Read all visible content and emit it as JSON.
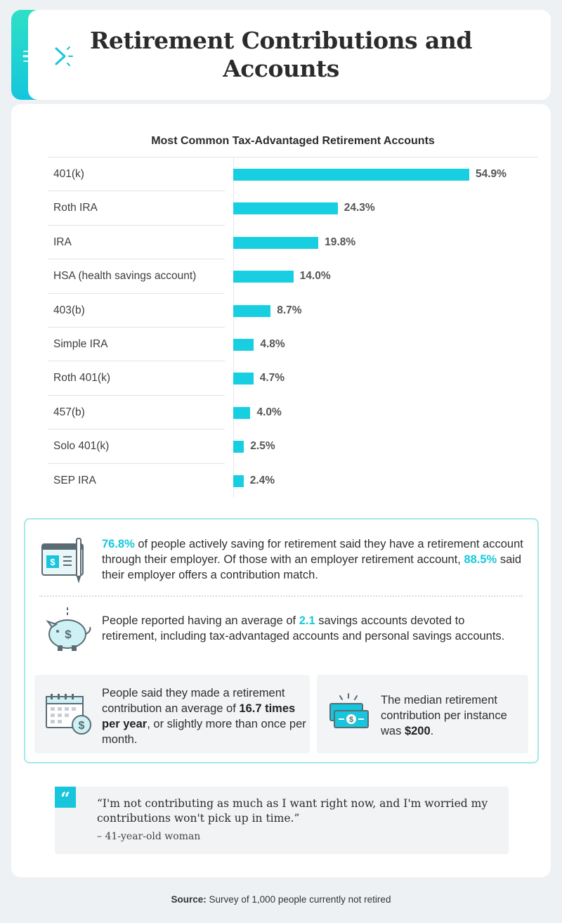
{
  "header": {
    "title": "Retirement Contributions and Accounts",
    "icon": "arrow-icon"
  },
  "chart_data": {
    "type": "bar",
    "orientation": "horizontal",
    "title": "Most Common Tax-Advantaged Retirement Accounts",
    "categories": [
      "401(k)",
      "Roth IRA",
      "IRA",
      "HSA (health savings account)",
      "403(b)",
      "Simple IRA",
      "Roth 401(k)",
      "457(b)",
      "Solo 401(k)",
      "SEP IRA"
    ],
    "values": [
      54.9,
      24.3,
      19.8,
      14.0,
      8.7,
      4.8,
      4.7,
      4.0,
      2.5,
      2.4
    ],
    "value_labels": [
      "54.9%",
      "24.3%",
      "19.8%",
      "14.0%",
      "8.7%",
      "4.8%",
      "4.7%",
      "4.0%",
      "2.5%",
      "2.4%"
    ],
    "xlim": [
      0,
      54.9
    ],
    "color": "#18cfe2",
    "grid": false
  },
  "facts": {
    "employer": {
      "icon": "paycheck-icon",
      "pct1": "76.8%",
      "text1": " of people actively saving for retirement said they have a retirement account through their employer. Of those with an employer retirement account, ",
      "pct2": "88.5%",
      "text2": " said their employer offers a contribution match."
    },
    "savings": {
      "icon": "piggy-bank-icon",
      "text1": "People reported having an average of ",
      "value": "2.1",
      "text2": " savings accounts devoted to retirement, including tax-advantaged accounts and personal savings accounts."
    },
    "frequency": {
      "icon": "calendar-dollar-icon",
      "text1": "People said they made a retirement contribution an average of ",
      "value": "16.7 times per year",
      "text2": ", or slightly more than once per month."
    },
    "median": {
      "icon": "cash-bills-icon",
      "text1": "The median retirement contribution per instance was ",
      "value": "$200",
      "text2": "."
    }
  },
  "quote": {
    "mark": "“",
    "text": "“I'm not contributing as much as I want right now, and I'm worried my contributions won't pick up in time.”",
    "attribution": "– 41-year-old woman"
  },
  "source": {
    "label": "Source:",
    "text": " Survey of 1,000 people currently not retired"
  },
  "colors": {
    "accent": "#18cfe2",
    "background": "#eef1f3",
    "border": "#a6e8e9"
  }
}
